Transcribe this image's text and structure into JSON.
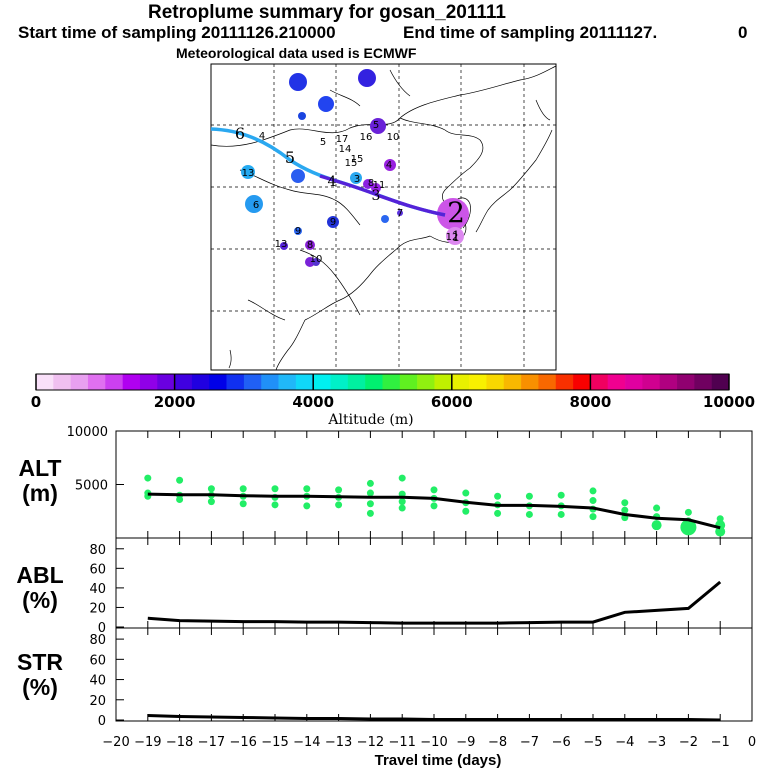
{
  "header": {
    "title": "Retroplume summary for gosan_201111",
    "start_label": "Start time of sampling 20111126.210000",
    "end_label": "End time of sampling 20111127.",
    "end_suffix": "0",
    "met_label": "Meteorological data used is ECMWF"
  },
  "colorbar": {
    "colors": [
      "#f9e0f9",
      "#f0c0f0",
      "#e8a0f0",
      "#e070f0",
      "#cc40f0",
      "#b000f0",
      "#9000e8",
      "#6a00e0",
      "#4000e0",
      "#2000e0",
      "#0000e8",
      "#1030f0",
      "#2060f5",
      "#2090f8",
      "#20b8f8",
      "#10d8f8",
      "#00f0f0",
      "#00f0c8",
      "#00f0a0",
      "#00f070",
      "#30f040",
      "#60f020",
      "#90f010",
      "#c0f000",
      "#e8f000",
      "#f8f000",
      "#f8d800",
      "#f8b800",
      "#f89000",
      "#f86800",
      "#f83000",
      "#f80000",
      "#f00060",
      "#f00090",
      "#e000a0",
      "#d00090",
      "#b00080",
      "#900070",
      "#700060",
      "#500050"
    ],
    "tick_labels": [
      "0",
      "2000",
      "4000",
      "6000",
      "8000",
      "10000"
    ],
    "axis_label": "Altitude (m)"
  },
  "map": {
    "trajectory_labels": [
      "1",
      "2",
      "3",
      "4",
      "5",
      "6"
    ],
    "cluster_labels": [
      "12",
      "11",
      "8",
      "5",
      "3",
      "4",
      "10",
      "15",
      "15",
      "14",
      "13",
      "16",
      "17",
      "5",
      "4",
      "6",
      "9",
      "8",
      "7",
      "13",
      "9",
      "10"
    ]
  },
  "panels": {
    "alt_label": "ALT\n(m)",
    "abl_label": "ABL\n(%)",
    "str_label": "STR\n(%)",
    "xlabel": "Travel time (days)"
  },
  "chart_data": [
    {
      "type": "line",
      "title": "ALT (m)",
      "x": [
        -1,
        -2,
        -3,
        -4,
        -5,
        -6,
        -7,
        -8,
        -9,
        -10,
        -11,
        -12,
        -13,
        -14,
        -15,
        -16,
        -17,
        -18,
        -19
      ],
      "values": [
        950,
        1700,
        1850,
        2200,
        2800,
        2950,
        3050,
        3050,
        3350,
        3700,
        3800,
        3800,
        3850,
        3900,
        3900,
        3950,
        4050,
        4050,
        4100
      ],
      "ylim": [
        0,
        10000
      ],
      "yticks": [
        "5000",
        "10000"
      ],
      "xlim": [
        -20,
        0
      ],
      "xticks": [
        "-20",
        "-19",
        "-18",
        "-17",
        "-16",
        "-15",
        "-14",
        "-13",
        "-12",
        "-11",
        "-10",
        "-9",
        "-8",
        "-7",
        "-6",
        "-5",
        "-4",
        "-3",
        "-2",
        "-1",
        "0"
      ],
      "xlabel": "Travel time (days)",
      "scatter_color": "#22ee66",
      "scatter_points": [
        [
          -1,
          600
        ],
        [
          -1,
          1200
        ],
        [
          -1,
          1800
        ],
        [
          -2,
          1000
        ],
        [
          -2,
          1600
        ],
        [
          -2,
          2400
        ],
        [
          -3,
          1200
        ],
        [
          -3,
          2000
        ],
        [
          -3,
          2800
        ],
        [
          -4,
          1900
        ],
        [
          -4,
          2600
        ],
        [
          -4,
          3300
        ],
        [
          -5,
          2000
        ],
        [
          -5,
          2700
        ],
        [
          -5,
          3500
        ],
        [
          -5,
          4400
        ],
        [
          -6,
          2200
        ],
        [
          -6,
          3000
        ],
        [
          -6,
          4000
        ],
        [
          -7,
          2200
        ],
        [
          -7,
          3000
        ],
        [
          -7,
          3900
        ],
        [
          -8,
          2300
        ],
        [
          -8,
          3100
        ],
        [
          -8,
          3900
        ],
        [
          -9,
          2500
        ],
        [
          -9,
          3300
        ],
        [
          -9,
          4200
        ],
        [
          -10,
          3000
        ],
        [
          -10,
          3700
        ],
        [
          -10,
          4500
        ],
        [
          -11,
          2800
        ],
        [
          -11,
          3400
        ],
        [
          -11,
          4100
        ],
        [
          -11,
          5600
        ],
        [
          -12,
          2300
        ],
        [
          -12,
          3200
        ],
        [
          -12,
          4200
        ],
        [
          -12,
          5100
        ],
        [
          -13,
          3100
        ],
        [
          -13,
          3800
        ],
        [
          -13,
          4500
        ],
        [
          -14,
          3000
        ],
        [
          -14,
          3900
        ],
        [
          -14,
          4600
        ],
        [
          -15,
          3100
        ],
        [
          -15,
          3800
        ],
        [
          -15,
          4600
        ],
        [
          -16,
          3200
        ],
        [
          -16,
          3900
        ],
        [
          -16,
          4600
        ],
        [
          -17,
          3400
        ],
        [
          -17,
          4000
        ],
        [
          -17,
          4600
        ],
        [
          -18,
          3600
        ],
        [
          -18,
          4000
        ],
        [
          -18,
          5400
        ],
        [
          -19,
          3900
        ],
        [
          -19,
          4200
        ],
        [
          -19,
          5600
        ]
      ]
    },
    {
      "type": "line",
      "title": "ABL (%)",
      "x": [
        -1,
        -2,
        -3,
        -4,
        -5,
        -6,
        -7,
        -8,
        -9,
        -10,
        -11,
        -12,
        -13,
        -14,
        -15,
        -16,
        -17,
        -18,
        -19
      ],
      "values": [
        46,
        19,
        17,
        15,
        5,
        5,
        4.5,
        4,
        4,
        4,
        4,
        4.5,
        5,
        5,
        5.5,
        5.5,
        6,
        6.5,
        9
      ],
      "ylim": [
        0,
        90
      ],
      "yticks": [
        "0",
        "20",
        "40",
        "60",
        "80"
      ]
    },
    {
      "type": "line",
      "title": "STR (%)",
      "x": [
        -1,
        -2,
        -3,
        -4,
        -5,
        -6,
        -7,
        -8,
        -9,
        -10,
        -11,
        -12,
        -13,
        -14,
        -15,
        -16,
        -17,
        -18,
        -19
      ],
      "values": [
        0,
        0.5,
        0.5,
        0.5,
        0.5,
        0.5,
        0.5,
        0.5,
        0.5,
        0.5,
        1,
        1,
        1.5,
        1.5,
        2,
        2.5,
        3,
        3.5,
        4.5
      ],
      "ylim": [
        0,
        90
      ],
      "yticks": [
        "0",
        "20",
        "40",
        "60",
        "80"
      ]
    }
  ]
}
